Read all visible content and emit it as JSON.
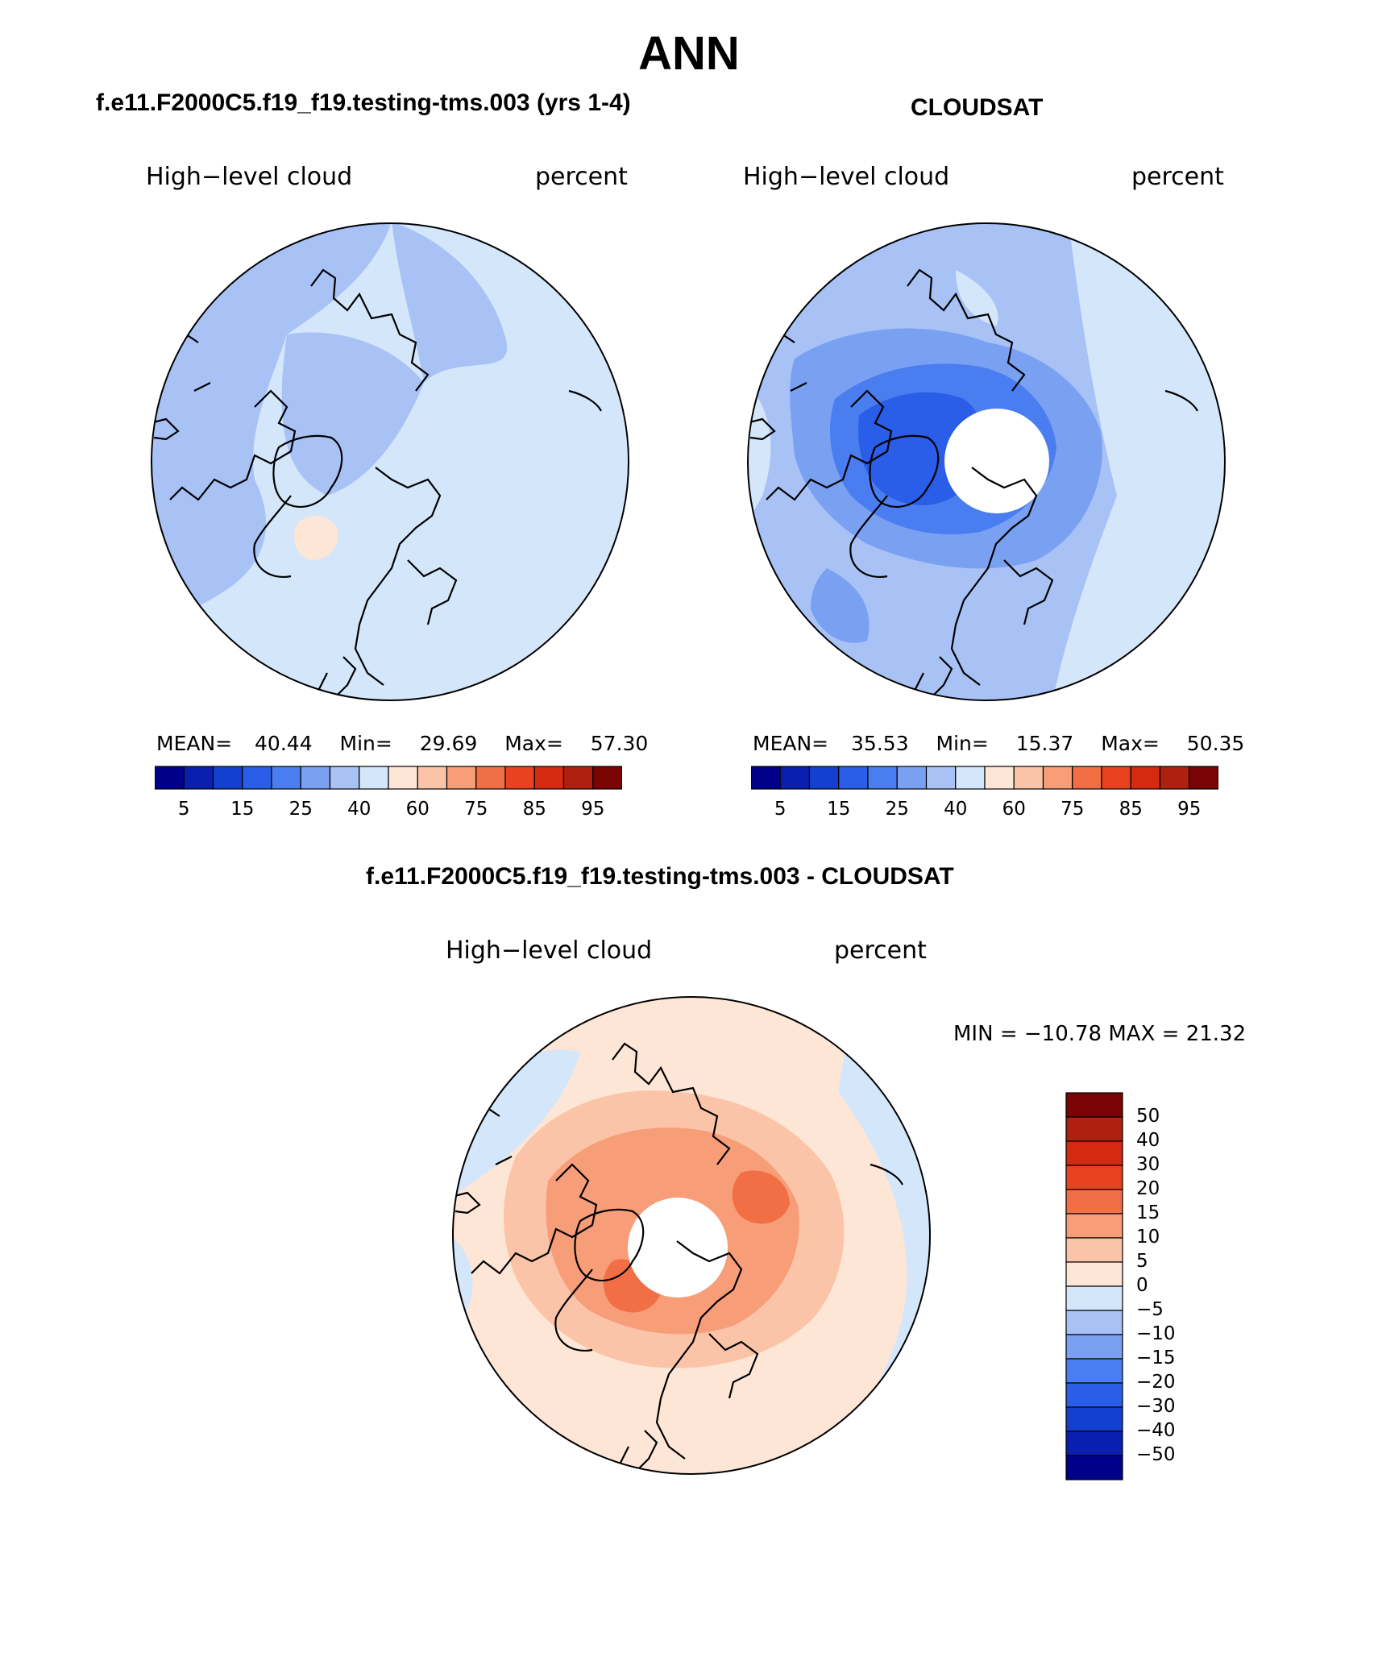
{
  "title": "ANN",
  "panels": [
    {
      "heading": "f.e11.F2000C5.f19_f19.testing-tms.003 (yrs 1-4)",
      "label_left": "High−level cloud",
      "label_right": "percent",
      "stats": {
        "mean_label": "MEAN=",
        "mean": "40.44",
        "min_label": "Min=",
        "min": "29.69",
        "max_label": "Max=",
        "max": "57.30"
      },
      "field": {
        "base_value": 40,
        "region_values": [
          35,
          45,
          30,
          45,
          55,
          45,
          40
        ]
      }
    },
    {
      "heading": "CLOUDSAT",
      "label_left": "High−level cloud",
      "label_right": "percent",
      "stats": {
        "mean_label": "MEAN=",
        "mean": "35.53",
        "min_label": "Min=",
        "min": "15.37",
        "max_label": "Max=",
        "max": "50.35"
      },
      "field": {
        "base_value": 35,
        "region_values": [
          30,
          25,
          20,
          15,
          30,
          35,
          30
        ]
      }
    }
  ],
  "abs_colorbar": {
    "colors": [
      "#00008b",
      "#0a1fb0",
      "#1440d0",
      "#2a5ee8",
      "#4a7ef0",
      "#7aa0f2",
      "#a8c2f6",
      "#d4e6fa",
      "#fde6d6",
      "#fbc4a8",
      "#f79d78",
      "#f26f45",
      "#e8421f",
      "#d42a10",
      "#b0200e",
      "#7a0404"
    ],
    "ticks": [
      "5",
      "15",
      "25",
      "40",
      "60",
      "75",
      "85",
      "95"
    ]
  },
  "diff_panel": {
    "heading": "f.e11.F2000C5.f19_f19.testing-tms.003 - CLOUDSAT",
    "label_left": "High−level cloud",
    "label_right": "percent",
    "minmax_text": "MIN = −10.78  MAX =  21.32",
    "field": {
      "base_value": 2,
      "region_values": [
        5,
        10,
        15,
        15,
        10,
        5,
        -5
      ]
    }
  },
  "diff_colorbar": {
    "colors": [
      "#7a0404",
      "#b0200e",
      "#d42a10",
      "#e8421f",
      "#f26f45",
      "#f79d78",
      "#fbc4a8",
      "#fde6d6",
      "#d4e6fa",
      "#a8c2f6",
      "#7aa0f2",
      "#4a7ef0",
      "#2a5ee8",
      "#1440d0",
      "#0a1fb0",
      "#00008b"
    ],
    "ticks": [
      "50",
      "40",
      "30",
      "20",
      "15",
      "10",
      "5",
      "0",
      "−5",
      "−10",
      "−15",
      "−20",
      "−30",
      "−40",
      "−50"
    ]
  }
}
